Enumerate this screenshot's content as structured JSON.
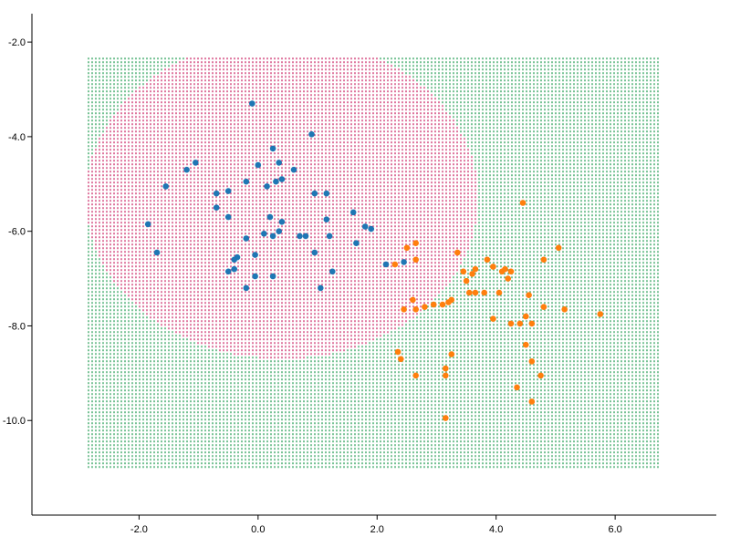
{
  "chart_data": {
    "type": "scatter",
    "title": "",
    "xlabel": "",
    "ylabel": "",
    "xlim": [
      -3.8,
      7.7
    ],
    "ylim": [
      -12.0,
      -1.4
    ],
    "grid": false,
    "legend": "none",
    "x_ticks": [
      {
        "value": -2.0,
        "label": "-2.0"
      },
      {
        "value": 0.0,
        "label": "0.0"
      },
      {
        "value": 2.0,
        "label": "2.0"
      },
      {
        "value": 4.0,
        "label": "4.0"
      },
      {
        "value": 6.0,
        "label": "6.0"
      }
    ],
    "y_ticks": [
      {
        "value": -2.0,
        "label": "-2.0"
      },
      {
        "value": -4.0,
        "label": "-4.0"
      },
      {
        "value": -6.0,
        "label": "-6.0"
      },
      {
        "value": -8.0,
        "label": "-8.0"
      },
      {
        "value": -10.0,
        "label": "-10.0"
      }
    ],
    "decision_region": {
      "x_range": [
        -2.85,
        6.75
      ],
      "y_range": [
        -11.0,
        -2.35
      ],
      "class_a_boundary_center": [
        0.4,
        -5.3
      ],
      "class_a_boundary_radius_x": 3.3,
      "class_a_boundary_radius_y": 3.4,
      "class_a_color": "#cc2d6a",
      "class_b_color": "#2ca05a"
    },
    "series": [
      {
        "color": "#1f77b4",
        "points": [
          [
            -0.1,
            -3.3
          ],
          [
            0.9,
            -3.95
          ],
          [
            0.25,
            -4.25
          ],
          [
            -1.05,
            -4.55
          ],
          [
            -1.2,
            -4.7
          ],
          [
            0.0,
            -4.6
          ],
          [
            0.35,
            -4.55
          ],
          [
            0.6,
            -4.7
          ],
          [
            -1.55,
            -5.05
          ],
          [
            -0.2,
            -4.95
          ],
          [
            0.3,
            -4.95
          ],
          [
            0.4,
            -4.9
          ],
          [
            0.15,
            -5.05
          ],
          [
            -0.5,
            -5.15
          ],
          [
            -0.7,
            -5.2
          ],
          [
            0.95,
            -5.2
          ],
          [
            1.15,
            -5.2
          ],
          [
            -0.7,
            -5.5
          ],
          [
            1.6,
            -5.6
          ],
          [
            -0.5,
            -5.7
          ],
          [
            0.2,
            -5.7
          ],
          [
            1.15,
            -5.75
          ],
          [
            0.4,
            -5.8
          ],
          [
            -1.85,
            -5.85
          ],
          [
            1.8,
            -5.9
          ],
          [
            1.9,
            -5.95
          ],
          [
            0.35,
            -6.0
          ],
          [
            0.1,
            -6.05
          ],
          [
            0.25,
            -6.1
          ],
          [
            0.8,
            -6.1
          ],
          [
            0.7,
            -6.1
          ],
          [
            1.2,
            -6.1
          ],
          [
            -0.2,
            -6.15
          ],
          [
            1.65,
            -6.25
          ],
          [
            -1.7,
            -6.45
          ],
          [
            0.95,
            -6.45
          ],
          [
            -0.05,
            -6.5
          ],
          [
            -0.35,
            -6.55
          ],
          [
            -0.4,
            -6.6
          ],
          [
            -0.4,
            -6.8
          ],
          [
            -0.5,
            -6.85
          ],
          [
            1.25,
            -6.85
          ],
          [
            -0.05,
            -6.95
          ],
          [
            0.25,
            -6.95
          ],
          [
            1.05,
            -7.2
          ],
          [
            -0.2,
            -7.2
          ],
          [
            2.15,
            -6.7
          ],
          [
            2.45,
            -6.65
          ]
        ]
      },
      {
        "color": "#ff7f0e",
        "points": [
          [
            4.45,
            -5.4
          ],
          [
            2.65,
            -6.25
          ],
          [
            2.5,
            -6.35
          ],
          [
            5.05,
            -6.35
          ],
          [
            3.35,
            -6.45
          ],
          [
            2.65,
            -6.6
          ],
          [
            3.85,
            -6.6
          ],
          [
            4.8,
            -6.6
          ],
          [
            2.3,
            -6.7
          ],
          [
            3.95,
            -6.75
          ],
          [
            3.65,
            -6.8
          ],
          [
            4.15,
            -6.8
          ],
          [
            4.1,
            -6.85
          ],
          [
            4.25,
            -6.85
          ],
          [
            3.45,
            -6.85
          ],
          [
            3.6,
            -6.9
          ],
          [
            3.5,
            -7.05
          ],
          [
            4.2,
            -7.0
          ],
          [
            3.65,
            -7.3
          ],
          [
            3.55,
            -7.3
          ],
          [
            3.8,
            -7.3
          ],
          [
            4.05,
            -7.3
          ],
          [
            4.55,
            -7.35
          ],
          [
            3.25,
            -7.45
          ],
          [
            3.2,
            -7.5
          ],
          [
            2.6,
            -7.45
          ],
          [
            3.1,
            -7.55
          ],
          [
            2.95,
            -7.55
          ],
          [
            2.8,
            -7.6
          ],
          [
            2.65,
            -7.65
          ],
          [
            2.45,
            -7.65
          ],
          [
            4.8,
            -7.6
          ],
          [
            5.15,
            -7.65
          ],
          [
            5.75,
            -7.75
          ],
          [
            4.5,
            -7.8
          ],
          [
            3.95,
            -7.85
          ],
          [
            4.25,
            -7.95
          ],
          [
            4.4,
            -7.95
          ],
          [
            4.6,
            -7.95
          ],
          [
            4.5,
            -8.4
          ],
          [
            2.35,
            -8.55
          ],
          [
            3.25,
            -8.6
          ],
          [
            2.4,
            -8.7
          ],
          [
            4.6,
            -8.75
          ],
          [
            3.15,
            -8.9
          ],
          [
            2.65,
            -9.05
          ],
          [
            3.15,
            -9.05
          ],
          [
            4.75,
            -9.05
          ],
          [
            4.35,
            -9.3
          ],
          [
            4.6,
            -9.6
          ],
          [
            3.15,
            -9.95
          ]
        ]
      }
    ]
  }
}
